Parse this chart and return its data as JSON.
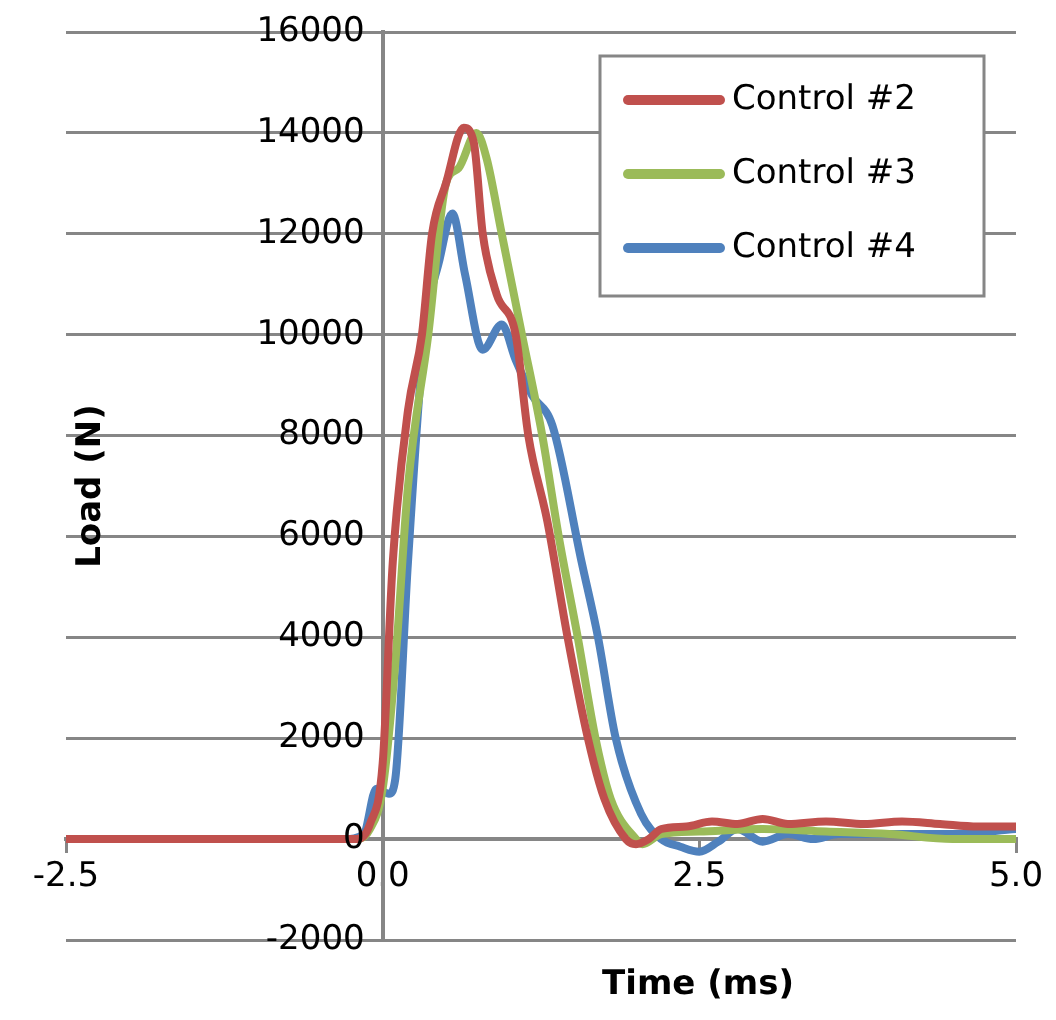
{
  "chart_data": {
    "type": "line",
    "xlabel": "Time (ms)",
    "ylabel": "Load (N)",
    "xlim": [
      -2.5,
      5.0
    ],
    "ylim": [
      -2000,
      16000
    ],
    "xticks": [
      {
        "value": -2.5,
        "label": "-2.5"
      },
      {
        "value": 0,
        "label": "0.0"
      },
      {
        "value": 2.5,
        "label": "2.5"
      },
      {
        "value": 5,
        "label": "5.0"
      }
    ],
    "yticks": [
      -2000,
      0,
      2000,
      4000,
      6000,
      8000,
      10000,
      12000,
      14000,
      16000
    ],
    "grid": "y",
    "legend": "top right",
    "marker": "none",
    "line_style": "solid",
    "series": [
      {
        "name": "Control #2",
        "color": "#c0504d",
        "x": [
          -2.5,
          -0.2,
          -0.1,
          0,
          0.08,
          0.2,
          0.31,
          0.39,
          0.5,
          0.64,
          0.72,
          0.79,
          0.9,
          1.05,
          1.15,
          1.3,
          1.46,
          1.62,
          1.75,
          1.92,
          2.0,
          2.1,
          2.2,
          2.4,
          2.6,
          2.8,
          3.0,
          3.2,
          3.5,
          3.8,
          4.1,
          4.4,
          4.7,
          5.0
        ],
        "values": [
          0,
          0,
          300,
          1500,
          5500,
          8500,
          10000,
          12000,
          13000,
          14100,
          13800,
          12000,
          10800,
          10000,
          8000,
          6300,
          4000,
          2000,
          800,
          0,
          -100,
          0,
          200,
          250,
          350,
          300,
          400,
          300,
          350,
          300,
          350,
          300,
          250,
          250
        ]
      },
      {
        "name": "Control #3",
        "color": "#9bbb59",
        "x": [
          -2.5,
          -0.2,
          -0.1,
          0,
          0.1,
          0.2,
          0.36,
          0.5,
          0.6,
          0.74,
          0.82,
          0.94,
          1.1,
          1.26,
          1.39,
          1.54,
          1.68,
          1.8,
          2.0,
          2.05,
          2.2,
          2.5,
          3.0,
          3.5,
          4.0,
          4.5,
          5.0
        ],
        "values": [
          0,
          0,
          200,
          1000,
          3500,
          7000,
          10000,
          13000,
          13300,
          14000,
          13500,
          12000,
          10000,
          8000,
          6000,
          4000,
          2000,
          800,
          0,
          -100,
          100,
          150,
          200,
          150,
          100,
          0,
          0
        ]
      },
      {
        "name": "Control #4",
        "color": "#4f81bd",
        "x": [
          -2.5,
          -0.3,
          -0.15,
          -0.05,
          0.05,
          0.1,
          0.2,
          0.33,
          0.45,
          0.55,
          0.65,
          0.79,
          0.94,
          1.05,
          1.18,
          1.34,
          1.57,
          1.7,
          1.84,
          2.04,
          2.2,
          2.35,
          2.5,
          2.65,
          2.8,
          3.0,
          3.2,
          3.4,
          3.6,
          4.0,
          4.5,
          5.0
        ],
        "values": [
          0,
          0,
          100,
          1000,
          900,
          1200,
          5500,
          10000,
          11500,
          12400,
          11200,
          9700,
          10200,
          9500,
          8800,
          8200,
          5500,
          4000,
          2000,
          500,
          0,
          -150,
          -250,
          -50,
          200,
          -50,
          100,
          0,
          100,
          100,
          100,
          200
        ]
      }
    ]
  }
}
